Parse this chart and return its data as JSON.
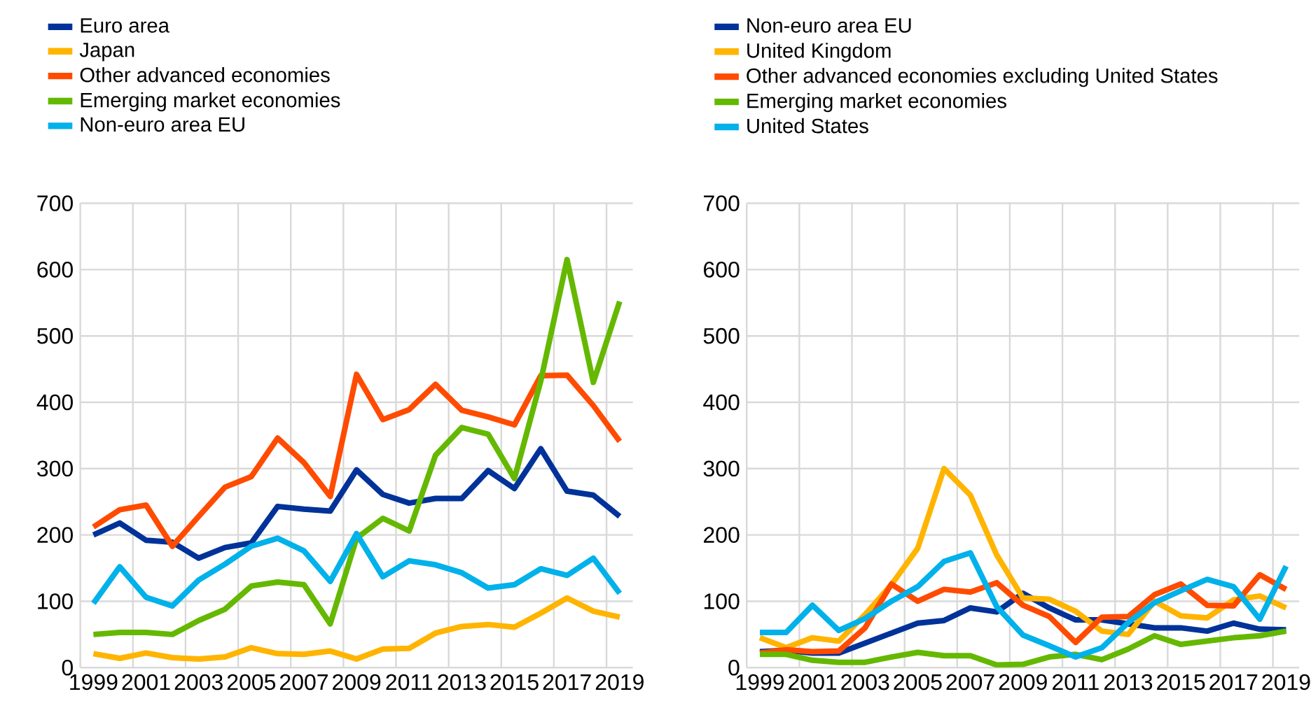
{
  "chart_data": [
    {
      "type": "line",
      "categories": [
        "1999",
        null,
        "2001",
        null,
        "2003",
        null,
        "2005",
        null,
        "2007",
        null,
        "2009",
        null,
        "2011",
        null,
        "2013",
        null,
        "2015",
        null,
        "2017",
        null,
        "2019"
      ],
      "ylim": [
        0,
        700
      ],
      "yticks": [
        0,
        100,
        200,
        300,
        400,
        500,
        600,
        700
      ],
      "grid": true,
      "legend": "top",
      "line_style": "solid",
      "series": [
        {
          "name": "Euro area",
          "color": "#003299",
          "values": [
            200,
            218,
            192,
            189,
            165,
            181,
            188,
            243,
            239,
            236,
            298,
            261,
            248,
            255,
            255,
            297,
            270,
            330,
            266,
            260,
            228
          ]
        },
        {
          "name": "Japan",
          "color": "#ffb400",
          "values": [
            21,
            14,
            22,
            15,
            13,
            16,
            30,
            21,
            20,
            25,
            13,
            28,
            29,
            52,
            62,
            65,
            61,
            82,
            105,
            85,
            76
          ]
        },
        {
          "name": "Other advanced economies",
          "color": "#ff4b00",
          "values": [
            212,
            238,
            245,
            183,
            228,
            272,
            288,
            346,
            309,
            258,
            442,
            374,
            389,
            427,
            388,
            378,
            366,
            440,
            441,
            395,
            341
          ]
        },
        {
          "name": "Emerging market economies",
          "color": "#65b800",
          "values": [
            50,
            53,
            53,
            50,
            71,
            88,
            123,
            129,
            125,
            66,
            195,
            225,
            206,
            320,
            362,
            352,
            285,
            432,
            615,
            430,
            552
          ]
        },
        {
          "name": "Non-euro area EU",
          "color": "#00b1ea",
          "values": [
            97,
            152,
            106,
            93,
            132,
            156,
            183,
            195,
            176,
            130,
            202,
            137,
            161,
            155,
            143,
            120,
            125,
            149,
            139,
            165,
            112
          ]
        }
      ]
    },
    {
      "type": "line",
      "categories": [
        "1999",
        null,
        "2001",
        null,
        "2003",
        null,
        "2005",
        null,
        "2007",
        null,
        "2009",
        null,
        "2011",
        null,
        "2013",
        null,
        "2015",
        null,
        "2017",
        null,
        "2019"
      ],
      "ylim": [
        0,
        700
      ],
      "yticks": [
        0,
        100,
        200,
        300,
        400,
        500,
        600,
        700
      ],
      "grid": true,
      "legend": "top",
      "line_style": "solid",
      "series": [
        {
          "name": "Non-euro area EU",
          "color": "#003299",
          "values": [
            24,
            26,
            22,
            22,
            37,
            52,
            67,
            71,
            90,
            84,
            112,
            90,
            72,
            72,
            66,
            60,
            60,
            55,
            67,
            58,
            57
          ]
        },
        {
          "name": "United Kingdom",
          "color": "#ffb400",
          "values": [
            45,
            30,
            45,
            40,
            80,
            125,
            180,
            300,
            260,
            170,
            105,
            103,
            85,
            55,
            50,
            100,
            78,
            75,
            102,
            108,
            90
          ]
        },
        {
          "name": "Other advanced economies excluding United States",
          "color": "#ff4b00",
          "values": [
            22,
            27,
            24,
            25,
            60,
            126,
            100,
            118,
            114,
            128,
            94,
            77,
            38,
            76,
            77,
            110,
            126,
            94,
            93,
            140,
            118
          ]
        },
        {
          "name": "Emerging market economies",
          "color": "#65b800",
          "values": [
            20,
            20,
            11,
            8,
            8,
            16,
            23,
            18,
            18,
            4,
            5,
            16,
            20,
            12,
            28,
            48,
            35,
            40,
            45,
            48,
            55
          ]
        },
        {
          "name": "United States",
          "color": "#00b1ea",
          "values": [
            53,
            53,
            94,
            56,
            74,
            100,
            122,
            160,
            173,
            92,
            49,
            33,
            16,
            30,
            68,
            98,
            116,
            133,
            122,
            73,
            153
          ]
        }
      ]
    }
  ]
}
